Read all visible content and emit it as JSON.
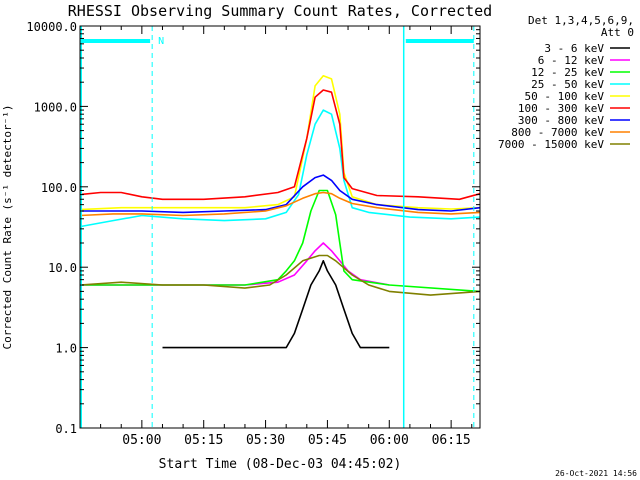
{
  "chart_data": {
    "type": "line",
    "title": "RHESSI Observing Summary Count Rates, Corrected",
    "ylabel": "Corrected Count Rate (s⁻¹ detector⁻¹)",
    "xlabel": "Start Time (08-Dec-03 04:45:02)",
    "y_scale": "log",
    "ylim": [
      0.1,
      10000
    ],
    "xlim_minutes": [
      0,
      97
    ],
    "y_ticks": [
      {
        "v": 10000,
        "label": "10000.0"
      },
      {
        "v": 1000,
        "label": "1000.0"
      },
      {
        "v": 100,
        "label": "100.0"
      },
      {
        "v": 10,
        "label": "10.0"
      },
      {
        "v": 1,
        "label": "1.0"
      },
      {
        "v": 0.1,
        "label": "0.1"
      }
    ],
    "x_ticks": [
      {
        "m": 15,
        "label": "05:00"
      },
      {
        "m": 30,
        "label": "05:15"
      },
      {
        "m": 45,
        "label": "05:30"
      },
      {
        "m": 60,
        "label": "05:45"
      },
      {
        "m": 75,
        "label": "06:00"
      },
      {
        "m": 90,
        "label": "06:15"
      }
    ],
    "legend_header": [
      "Det 1,3,4,5,6,9,",
      "Att 0"
    ],
    "legend_placement": "right",
    "series": [
      {
        "name": "3 - 6 keV",
        "color": "#000000",
        "points": [
          [
            20,
            1.0
          ],
          [
            30,
            1.0
          ],
          [
            40,
            1.0
          ],
          [
            50,
            1.0
          ],
          [
            52,
            1.5
          ],
          [
            54,
            3
          ],
          [
            56,
            6
          ],
          [
            58,
            9
          ],
          [
            59,
            12
          ],
          [
            60,
            9
          ],
          [
            62,
            6
          ],
          [
            64,
            3
          ],
          [
            66,
            1.5
          ],
          [
            68,
            1.0
          ],
          [
            75,
            1.0
          ]
        ]
      },
      {
        "name": "6 - 12 keV",
        "color": "#ff00ff",
        "points": [
          [
            0,
            6
          ],
          [
            20,
            6
          ],
          [
            40,
            6
          ],
          [
            48,
            6.5
          ],
          [
            52,
            8
          ],
          [
            55,
            12
          ],
          [
            57,
            16
          ],
          [
            59,
            20
          ],
          [
            61,
            16
          ],
          [
            63,
            12
          ],
          [
            65,
            9
          ],
          [
            68,
            7
          ],
          [
            75,
            6
          ]
        ]
      },
      {
        "name": "12 - 25 keV",
        "color": "#00ff00",
        "points": [
          [
            0,
            6
          ],
          [
            20,
            6
          ],
          [
            40,
            6
          ],
          [
            48,
            7
          ],
          [
            50,
            9
          ],
          [
            52,
            12
          ],
          [
            54,
            20
          ],
          [
            56,
            50
          ],
          [
            58,
            90
          ],
          [
            60,
            90
          ],
          [
            62,
            45
          ],
          [
            63,
            20
          ],
          [
            64,
            9
          ],
          [
            66,
            7
          ],
          [
            75,
            6
          ],
          [
            97,
            5
          ]
        ]
      },
      {
        "name": "25 - 50 keV",
        "color": "#00ffff",
        "points": [
          [
            0,
            32
          ],
          [
            8,
            38
          ],
          [
            15,
            44
          ],
          [
            25,
            40
          ],
          [
            35,
            38
          ],
          [
            45,
            40
          ],
          [
            50,
            48
          ],
          [
            53,
            80
          ],
          [
            55,
            250
          ],
          [
            57,
            600
          ],
          [
            59,
            900
          ],
          [
            61,
            800
          ],
          [
            63,
            300
          ],
          [
            64,
            120
          ],
          [
            66,
            55
          ],
          [
            70,
            48
          ],
          [
            80,
            42
          ],
          [
            90,
            40
          ],
          [
            97,
            42
          ]
        ]
      },
      {
        "name": "50 - 100 keV",
        "color": "#ffff00",
        "points": [
          [
            0,
            52
          ],
          [
            10,
            55
          ],
          [
            20,
            55
          ],
          [
            30,
            55
          ],
          [
            40,
            55
          ],
          [
            48,
            60
          ],
          [
            52,
            75
          ],
          [
            55,
            400
          ],
          [
            57,
            1800
          ],
          [
            59,
            2400
          ],
          [
            61,
            2200
          ],
          [
            63,
            800
          ],
          [
            64,
            150
          ],
          [
            66,
            75
          ],
          [
            72,
            60
          ],
          [
            82,
            55
          ],
          [
            90,
            53
          ],
          [
            97,
            55
          ]
        ]
      },
      {
        "name": "100 - 300 keV",
        "color": "#ff0000",
        "points": [
          [
            0,
            80
          ],
          [
            5,
            85
          ],
          [
            10,
            85
          ],
          [
            15,
            75
          ],
          [
            20,
            70
          ],
          [
            30,
            70
          ],
          [
            40,
            75
          ],
          [
            48,
            85
          ],
          [
            52,
            100
          ],
          [
            55,
            400
          ],
          [
            57,
            1300
          ],
          [
            59,
            1600
          ],
          [
            61,
            1500
          ],
          [
            63,
            600
          ],
          [
            64,
            130
          ],
          [
            66,
            95
          ],
          [
            72,
            78
          ],
          [
            82,
            75
          ],
          [
            92,
            70
          ],
          [
            97,
            82
          ]
        ]
      },
      {
        "name": "300 - 800 keV",
        "color": "#0000ff",
        "points": [
          [
            0,
            50
          ],
          [
            8,
            50
          ],
          [
            15,
            50
          ],
          [
            25,
            48
          ],
          [
            35,
            50
          ],
          [
            45,
            52
          ],
          [
            50,
            60
          ],
          [
            54,
            100
          ],
          [
            57,
            130
          ],
          [
            59,
            140
          ],
          [
            61,
            120
          ],
          [
            63,
            90
          ],
          [
            66,
            70
          ],
          [
            72,
            60
          ],
          [
            82,
            52
          ],
          [
            90,
            50
          ],
          [
            97,
            55
          ]
        ]
      },
      {
        "name": "800 - 7000 keV",
        "color": "#ff8000",
        "points": [
          [
            0,
            44
          ],
          [
            8,
            46
          ],
          [
            15,
            46
          ],
          [
            25,
            44
          ],
          [
            35,
            46
          ],
          [
            45,
            50
          ],
          [
            50,
            58
          ],
          [
            54,
            72
          ],
          [
            57,
            82
          ],
          [
            59,
            85
          ],
          [
            61,
            82
          ],
          [
            63,
            72
          ],
          [
            66,
            62
          ],
          [
            72,
            55
          ],
          [
            82,
            48
          ],
          [
            90,
            46
          ],
          [
            97,
            48
          ]
        ]
      },
      {
        "name": "7000 - 15000 keV",
        "color": "#808000",
        "points": [
          [
            0,
            6
          ],
          [
            10,
            6.5
          ],
          [
            20,
            6
          ],
          [
            30,
            6
          ],
          [
            40,
            5.5
          ],
          [
            46,
            6
          ],
          [
            50,
            8
          ],
          [
            54,
            12
          ],
          [
            58,
            14
          ],
          [
            60,
            14
          ],
          [
            62,
            12
          ],
          [
            66,
            8
          ],
          [
            70,
            6
          ],
          [
            75,
            5
          ],
          [
            85,
            4.5
          ],
          [
            97,
            5
          ]
        ]
      }
    ],
    "flag_label": "N",
    "timestamp": "26-Oct-2021 14:56"
  }
}
